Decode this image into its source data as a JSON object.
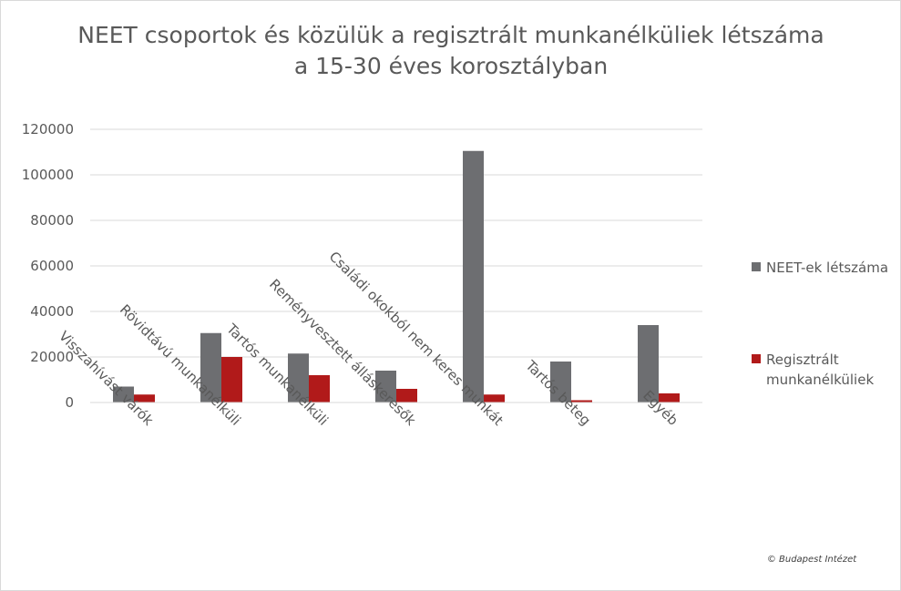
{
  "chart_data": {
    "type": "bar",
    "title_lines": [
      "NEET csoportok és közülük a regisztrált munkanélküliek létszáma",
      "a 15-30 éves korosztályban"
    ],
    "categories": [
      "Visszahívást várók",
      "Rövidtávú munkanélküli",
      "Tartós munkanélküli",
      "Reményvesztett álláskeresők",
      "Családi okokból nem keres munkát",
      "Tartós beteg",
      "Egyéb"
    ],
    "series": [
      {
        "name_lines": [
          "NEET-ek létszáma"
        ],
        "color": "#6d6e71",
        "values": [
          7000,
          30500,
          21500,
          14000,
          110500,
          18000,
          34000
        ]
      },
      {
        "name_lines": [
          "Regisztrált",
          "munkanélküliek"
        ],
        "color": "#b11a1a",
        "values": [
          3500,
          20000,
          12000,
          6000,
          3500,
          1000,
          4000
        ]
      }
    ],
    "y_ticks": [
      "0",
      "20000",
      "40000",
      "60000",
      "80000",
      "100000",
      "120000"
    ],
    "ylim": [
      0,
      120000
    ],
    "grid": true,
    "legend_position": "right",
    "credit": "© Budapest Intézet"
  }
}
